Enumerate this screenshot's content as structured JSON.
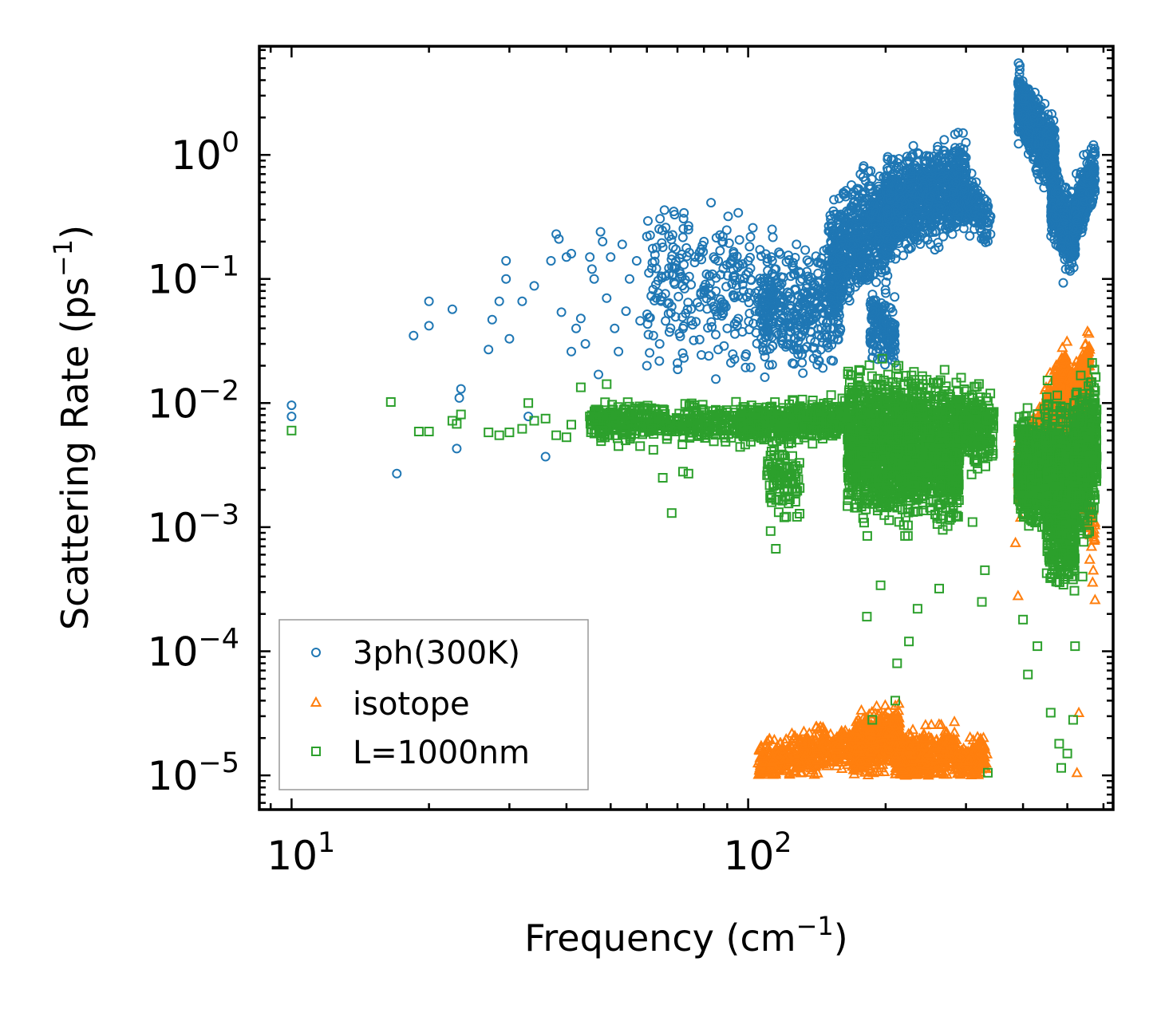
{
  "chart_data": {
    "type": "scatter",
    "xscale": "log",
    "yscale": "log",
    "xlim": [
      8.5,
      630
    ],
    "ylim": [
      5.3e-06,
      7.5
    ],
    "xlabel": {
      "main": "Frequency (cm",
      "sup": "−1",
      "tail": ")"
    },
    "ylabel": {
      "main": "Scattering Rate (ps",
      "sup": "−1",
      "tail": ")"
    },
    "x_ticks": [
      {
        "value": 10,
        "base": "10",
        "exp": "1"
      },
      {
        "value": 100,
        "base": "10",
        "exp": "2"
      }
    ],
    "y_ticks": [
      {
        "value": 1,
        "base": "10",
        "exp": "0"
      },
      {
        "value": 0.1,
        "base": "10",
        "exp": "−1"
      },
      {
        "value": 0.01,
        "base": "10",
        "exp": "−2"
      },
      {
        "value": 0.001,
        "base": "10",
        "exp": "−3"
      },
      {
        "value": 0.0001,
        "base": "10",
        "exp": "−4"
      },
      {
        "value": 1e-05,
        "base": "10",
        "exp": "−5"
      }
    ],
    "legend_position": "lower-left",
    "series": [
      {
        "name": "3ph(300K)",
        "marker": "circle",
        "color": "#1f77b4",
        "points": [
          [
            10,
            0.0096
          ],
          [
            10,
            0.0078
          ],
          [
            17,
            0.0027
          ],
          [
            18.5,
            0.035
          ],
          [
            20,
            0.066
          ],
          [
            20,
            0.042
          ],
          [
            22.5,
            0.057
          ],
          [
            23,
            0.0043
          ],
          [
            23.3,
            0.011
          ],
          [
            23.5,
            0.013
          ],
          [
            27,
            0.027
          ],
          [
            27.5,
            0.047
          ],
          [
            28.5,
            0.066
          ],
          [
            29.5,
            0.14
          ],
          [
            29.5,
            0.1
          ],
          [
            30,
            0.033
          ],
          [
            32,
            0.066
          ],
          [
            33,
            0.0078
          ],
          [
            34,
            0.088
          ],
          [
            36,
            0.0037
          ],
          [
            37,
            0.14
          ],
          [
            38,
            0.23
          ],
          [
            38.5,
            0.21
          ],
          [
            39,
            0.054
          ],
          [
            40,
            0.15
          ],
          [
            41,
            0.16
          ],
          [
            41,
            0.026
          ],
          [
            42,
            0.04
          ],
          [
            43,
            0.048
          ],
          [
            44,
            0.03
          ],
          [
            45,
            0.15
          ],
          [
            45.5,
            0.12
          ],
          [
            46,
            0.1
          ],
          [
            47,
            0.017
          ],
          [
            47.5,
            0.24
          ],
          [
            48,
            0.2
          ],
          [
            49,
            0.07
          ],
          [
            50,
            0.15
          ],
          [
            51,
            0.04
          ],
          [
            52,
            0.026
          ],
          [
            53,
            0.19
          ],
          [
            54,
            0.055
          ],
          [
            55,
            0.1
          ],
          [
            57,
            0.14
          ],
          [
            58,
            0.046
          ],
          [
            60,
            0.22
          ],
          [
            60,
            0.02
          ],
          [
            62,
            0.035
          ],
          [
            63,
            0.07
          ],
          [
            64,
            0.03
          ],
          [
            65,
            0.18
          ],
          [
            66,
            0.26
          ],
          [
            68,
            0.06
          ],
          [
            69,
            0.33
          ],
          [
            70,
            0.021
          ],
          [
            71,
            0.11
          ],
          [
            72,
            0.04
          ],
          [
            74,
            0.25
          ],
          [
            75,
            0.09
          ],
          [
            76,
            0.032
          ],
          [
            78,
            0.15
          ],
          [
            80,
            0.2
          ],
          [
            82,
            0.024
          ],
          [
            84,
            0.06
          ],
          [
            86,
            0.14
          ],
          [
            88,
            0.22
          ],
          [
            90,
            0.04
          ],
          [
            93,
            0.16
          ],
          [
            96,
            0.1
          ],
          [
            100,
            0.14
          ],
          [
            105,
            0.065
          ],
          [
            110,
            0.035
          ],
          [
            115,
            0.12
          ],
          [
            125,
            0.021
          ],
          [
            130,
            0.045
          ],
          [
            135,
            0.075
          ],
          [
            140,
            0.09
          ],
          [
            150,
            0.14
          ],
          [
            160,
            0.2
          ],
          [
            175,
            0.3
          ],
          [
            190,
            0.35
          ],
          [
            200,
            0.026
          ],
          [
            205,
            0.45
          ],
          [
            215,
            0.55
          ],
          [
            230,
            0.4
          ],
          [
            245,
            0.9
          ],
          [
            260,
            1.1
          ],
          [
            285,
            0.6
          ],
          [
            300,
            0.95
          ],
          [
            310,
            0.45
          ],
          [
            330,
            0.3
          ],
          [
            395,
            3.6
          ],
          [
            420,
            2.0
          ],
          [
            450,
            1.5
          ],
          [
            470,
            0.8
          ],
          [
            490,
            0.093
          ],
          [
            505,
            0.12
          ],
          [
            525,
            0.3
          ],
          [
            560,
            0.5
          ],
          [
            575,
            1.0
          ]
        ],
        "bands": [
          {
            "x": [
              60,
              115
            ],
            "center": [
              0.1,
              0.07
            ],
            "spread": 0.5,
            "n": 260
          },
          {
            "x": [
              105,
              160
            ],
            "center": [
              0.055,
              0.06
            ],
            "spread": 0.35,
            "n": 380
          },
          {
            "x": [
              150,
              210
            ],
            "center": [
              0.13,
              0.35
            ],
            "spread": 0.38,
            "n": 700
          },
          {
            "x": [
              185,
              210
            ],
            "center": [
              0.045,
              0.035
            ],
            "spread": 0.22,
            "n": 160
          },
          {
            "x": [
              200,
              300
            ],
            "center": [
              0.35,
              0.6
            ],
            "spread": 0.3,
            "n": 900
          },
          {
            "x": [
              280,
              340
            ],
            "center": [
              0.5,
              0.3
            ],
            "spread": 0.18,
            "n": 200
          },
          {
            "x": [
              390,
              470
            ],
            "center": [
              2.6,
              0.9
            ],
            "spread": 0.22,
            "n": 700
          },
          {
            "x": [
              460,
              520
            ],
            "center": [
              0.45,
              0.2
            ],
            "spread": 0.25,
            "n": 450
          },
          {
            "x": [
              515,
              575
            ],
            "center": [
              0.28,
              0.8
            ],
            "spread": 0.2,
            "n": 280
          }
        ]
      },
      {
        "name": "isotope",
        "marker": "triangle",
        "color": "#ff7f0e",
        "points": [
          [
            385,
            0.00075
          ],
          [
            390,
            0.00028
          ],
          [
            395,
            0.0012
          ],
          [
            530,
            3.2e-05
          ],
          [
            525,
            1.05e-05
          ],
          [
            565,
            0.0007
          ],
          [
            570,
            0.00045
          ],
          [
            575,
            0.00026
          ],
          [
            568,
            0.00036
          ],
          [
            560,
            0.00055
          ]
        ],
        "bands": [
          {
            "x": [
              105,
              175
            ],
            "center": [
              1.3e-05,
              1.8e-05
            ],
            "spread": 0.14,
            "n": 450
          },
          {
            "x": [
              170,
              215
            ],
            "center": [
              1.6e-05,
              2.2e-05
            ],
            "spread": 0.2,
            "n": 420
          },
          {
            "x": [
              210,
              285
            ],
            "center": [
              1.3e-05,
              1.6e-05
            ],
            "spread": 0.17,
            "n": 420
          },
          {
            "x": [
              285,
              335
            ],
            "center": [
              1.3e-05,
              1.4e-05
            ],
            "spread": 0.14,
            "n": 160
          },
          {
            "x": [
              390,
              440
            ],
            "center": [
              0.0025,
              0.0055
            ],
            "spread": 0.2,
            "n": 300
          },
          {
            "x": [
              440,
              500
            ],
            "center": [
              0.006,
              0.016
            ],
            "spread": 0.22,
            "n": 400
          },
          {
            "x": [
              500,
              560
            ],
            "center": [
              0.008,
              0.02
            ],
            "spread": 0.24,
            "n": 350
          },
          {
            "x": [
              545,
              575
            ],
            "center": [
              0.0015,
              0.001
            ],
            "spread": 0.15,
            "n": 50
          }
        ]
      },
      {
        "name": "L=1000nm",
        "marker": "square",
        "color": "#2ca02c",
        "points": [
          [
            10,
            0.006
          ],
          [
            16.5,
            0.0102
          ],
          [
            19,
            0.0059
          ],
          [
            20,
            0.0059
          ],
          [
            22.5,
            0.0072
          ],
          [
            23,
            0.0068
          ],
          [
            23.5,
            0.0081
          ],
          [
            27,
            0.0058
          ],
          [
            28.5,
            0.0055
          ],
          [
            30,
            0.0058
          ],
          [
            32,
            0.0062
          ],
          [
            33,
            0.01
          ],
          [
            34,
            0.0072
          ],
          [
            36,
            0.0075
          ],
          [
            38,
            0.0055
          ],
          [
            40,
            0.0053
          ],
          [
            41,
            0.0067
          ],
          [
            43,
            0.0134
          ],
          [
            45,
            0.0078
          ],
          [
            48,
            0.006
          ],
          [
            49,
            0.0142
          ],
          [
            52,
            0.0045
          ],
          [
            58,
            0.0045
          ],
          [
            62,
            0.0042
          ],
          [
            65,
            0.0025
          ],
          [
            68,
            0.0013
          ],
          [
            72,
            0.0028
          ],
          [
            74,
            0.0027
          ],
          [
            115,
            0.00067
          ],
          [
            112,
            0.00093
          ],
          [
            120,
            0.0012
          ],
          [
            182,
            0.00019
          ],
          [
            187,
            2.8e-05
          ],
          [
            195,
            0.00034
          ],
          [
            210,
            4e-05
          ],
          [
            212,
            8e-05
          ],
          [
            225,
            0.00012
          ],
          [
            235,
            0.00022
          ],
          [
            262,
            0.00032
          ],
          [
            310,
            0.0011
          ],
          [
            325,
            0.00025
          ],
          [
            330,
            0.00045
          ],
          [
            335,
            1.05e-05
          ],
          [
            400,
            0.00018
          ],
          [
            410,
            6.5e-05
          ],
          [
            430,
            0.00011
          ],
          [
            460,
            3.2e-05
          ],
          [
            480,
            1.8e-05
          ],
          [
            485,
            1.15e-05
          ],
          [
            500,
            1.5e-05
          ],
          [
            515,
            2.8e-05
          ],
          [
            520,
            0.00011
          ],
          [
            540,
            0.0004
          ],
          [
            560,
            0.0031
          ],
          [
            568,
            0.0012
          ]
        ],
        "bands": [
          {
            "x": [
              45,
              100
            ],
            "center": [
              0.0072,
              0.0068
            ],
            "spread": 0.12,
            "n": 420
          },
          {
            "x": [
              95,
              165
            ],
            "center": [
              0.0068,
              0.0075
            ],
            "spread": 0.12,
            "n": 520
          },
          {
            "x": [
              110,
              130
            ],
            "center": [
              0.003,
              0.002
            ],
            "spread": 0.25,
            "n": 100
          },
          {
            "x": [
              165,
              225
            ],
            "center": [
              0.005,
              0.004
            ],
            "spread": 0.45,
            "n": 1000
          },
          {
            "x": [
              220,
              290
            ],
            "center": [
              0.005,
              0.004
            ],
            "spread": 0.42,
            "n": 900
          },
          {
            "x": [
              290,
              345
            ],
            "center": [
              0.007,
              0.006
            ],
            "spread": 0.25,
            "n": 220
          },
          {
            "x": [
              390,
              455
            ],
            "center": [
              0.003,
              0.0028
            ],
            "spread": 0.32,
            "n": 600
          },
          {
            "x": [
              450,
              520
            ],
            "center": [
              0.0022,
              0.0015
            ],
            "spread": 0.55,
            "n": 800
          },
          {
            "x": [
              515,
              580
            ],
            "center": [
              0.003,
              0.005
            ],
            "spread": 0.45,
            "n": 500
          }
        ]
      }
    ]
  }
}
